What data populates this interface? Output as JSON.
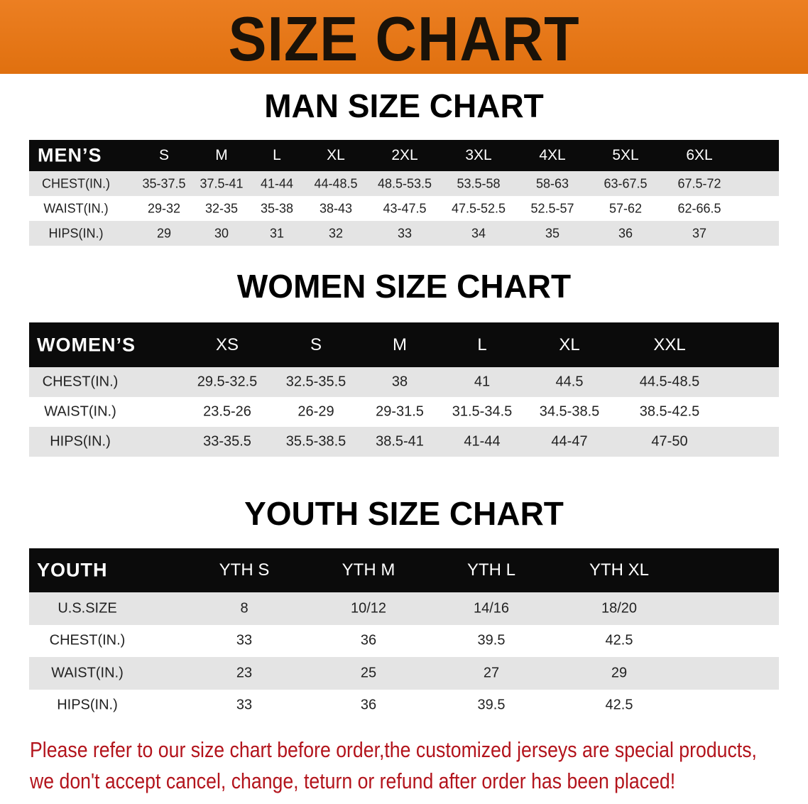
{
  "banner": {
    "title": "SIZE CHART",
    "color": "#e8771a"
  },
  "chart_data": [
    {
      "type": "table",
      "title": "MAN SIZE CHART",
      "header": [
        "MEN’S",
        "S",
        "M",
        "L",
        "XL",
        "2XL",
        "3XL",
        "4XL",
        "5XL",
        "6XL"
      ],
      "rows": [
        [
          "CHEST(IN.)",
          "35-37.5",
          "37.5-41",
          "41-44",
          "44-48.5",
          "48.5-53.5",
          "53.5-58",
          "58-63",
          "63-67.5",
          "67.5-72"
        ],
        [
          "WAIST(IN.)",
          "29-32",
          "32-35",
          "35-38",
          "38-43",
          "43-47.5",
          "47.5-52.5",
          "52.5-57",
          "57-62",
          "62-66.5"
        ],
        [
          "HIPS(IN.)",
          "29",
          "30",
          "31",
          "32",
          "33",
          "34",
          "35",
          "36",
          "37"
        ]
      ]
    },
    {
      "type": "table",
      "title": "WOMEN SIZE CHART",
      "header": [
        "WOMEN’S",
        "XS",
        "S",
        "M",
        "L",
        "XL",
        "XXL"
      ],
      "rows": [
        [
          "CHEST(IN.)",
          "29.5-32.5",
          "32.5-35.5",
          "38",
          "41",
          "44.5",
          "44.5-48.5"
        ],
        [
          "WAIST(IN.)",
          "23.5-26",
          "26-29",
          "29-31.5",
          "31.5-34.5",
          "34.5-38.5",
          "38.5-42.5"
        ],
        [
          "HIPS(IN.)",
          "33-35.5",
          "35.5-38.5",
          "38.5-41",
          "41-44",
          "44-47",
          "47-50"
        ]
      ]
    },
    {
      "type": "table",
      "title": "YOUTH SIZE CHART",
      "header": [
        "YOUTH",
        "YTH S",
        "YTH M",
        "YTH L",
        "YTH XL"
      ],
      "rows": [
        [
          "U.S.SIZE",
          "8",
          "10/12",
          "14/16",
          "18/20"
        ],
        [
          "CHEST(IN.)",
          "33",
          "36",
          "39.5",
          "42.5"
        ],
        [
          "WAIST(IN.)",
          "23",
          "25",
          "27",
          "29"
        ],
        [
          "HIPS(IN.)",
          "33",
          "36",
          "39.5",
          "42.5"
        ]
      ]
    }
  ],
  "note": {
    "line1": "Please refer to our size chart before order,the customized jerseys are special products,",
    "line2": "we don't accept cancel, change, teturn or refund after order has been placed!",
    "color": "#b3141c"
  }
}
